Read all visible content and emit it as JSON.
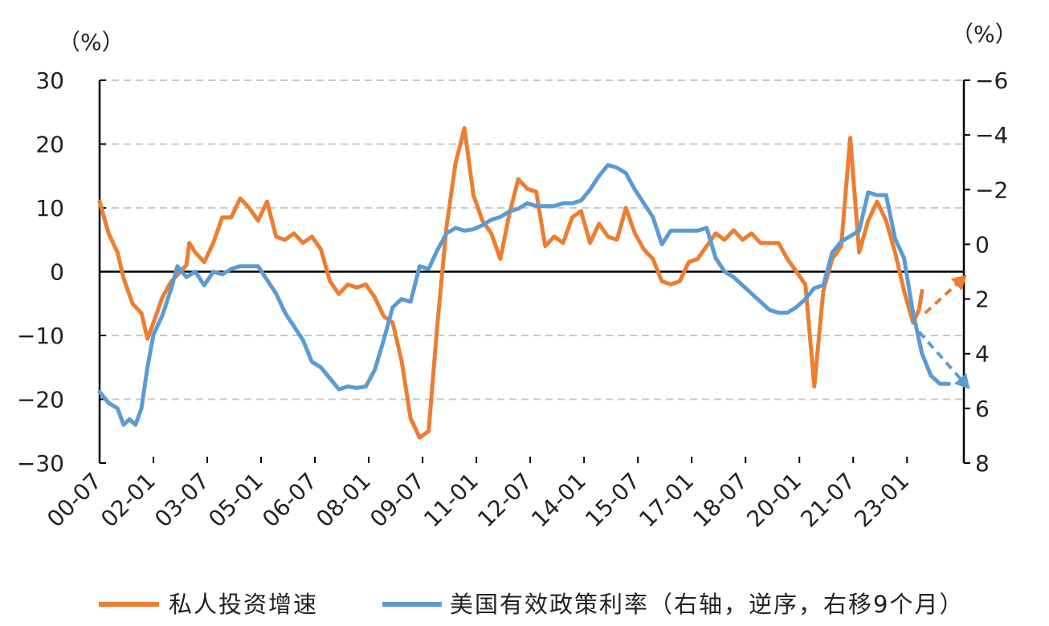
{
  "chart_data": {
    "type": "line",
    "units_left": "（%）",
    "units_right": "（%）",
    "x_tick_labels": [
      "00-07",
      "02-01",
      "03-07",
      "05-01",
      "06-07",
      "08-01",
      "09-07",
      "11-01",
      "12-07",
      "14-01",
      "15-07",
      "17-01",
      "18-07",
      "20-01",
      "21-07",
      "23-01"
    ],
    "x_range": [
      "2000-07",
      "2024-08"
    ],
    "y_left": {
      "ticks": [
        30,
        20,
        10,
        0,
        -10,
        -20,
        -30
      ],
      "range": [
        -30,
        30
      ]
    },
    "y_right": {
      "ticks": [
        -6,
        -4,
        -2,
        0,
        2,
        4,
        6,
        8
      ],
      "range": [
        -6,
        8
      ],
      "reversed": true
    },
    "grid": "dashed horizontal",
    "legend_position": "bottom",
    "series": [
      {
        "name": "私人投资增速",
        "axis": "left",
        "color": "#ED7D31",
        "points": [
          [
            "2000-07",
            11
          ],
          [
            "2000-10",
            6
          ],
          [
            "2001-01",
            3
          ],
          [
            "2001-03",
            -1
          ],
          [
            "2001-06",
            -5
          ],
          [
            "2001-09",
            -6.5
          ],
          [
            "2001-11",
            -10.5
          ],
          [
            "2002-01",
            -8
          ],
          [
            "2002-04",
            -4
          ],
          [
            "2002-07",
            -1.5
          ],
          [
            "2002-10",
            0
          ],
          [
            "2002-12",
            1
          ],
          [
            "2003-01",
            4.5
          ],
          [
            "2003-03",
            3
          ],
          [
            "2003-06",
            1.5
          ],
          [
            "2003-09",
            4.5
          ],
          [
            "2003-12",
            8.5
          ],
          [
            "2004-03",
            8.5
          ],
          [
            "2004-06",
            11.5
          ],
          [
            "2004-09",
            10
          ],
          [
            "2004-12",
            8
          ],
          [
            "2005-03",
            11
          ],
          [
            "2005-06",
            5.5
          ],
          [
            "2005-09",
            5
          ],
          [
            "2005-12",
            6
          ],
          [
            "2006-03",
            4.5
          ],
          [
            "2006-06",
            5.5
          ],
          [
            "2006-09",
            3.5
          ],
          [
            "2006-12",
            -1.5
          ],
          [
            "2007-03",
            -3.5
          ],
          [
            "2007-06",
            -2
          ],
          [
            "2007-09",
            -2.5
          ],
          [
            "2007-12",
            -2
          ],
          [
            "2008-03",
            -4
          ],
          [
            "2008-06",
            -7
          ],
          [
            "2008-09",
            -8
          ],
          [
            "2008-12",
            -14
          ],
          [
            "2009-03",
            -23
          ],
          [
            "2009-06",
            -26
          ],
          [
            "2009-09",
            -25
          ],
          [
            "2009-12",
            -8
          ],
          [
            "2010-03",
            7
          ],
          [
            "2010-06",
            17
          ],
          [
            "2010-09",
            22.5
          ],
          [
            "2010-12",
            12
          ],
          [
            "2011-03",
            8
          ],
          [
            "2011-06",
            6
          ],
          [
            "2011-09",
            2
          ],
          [
            "2011-12",
            9
          ],
          [
            "2012-03",
            14.5
          ],
          [
            "2012-06",
            13
          ],
          [
            "2012-09",
            12.5
          ],
          [
            "2012-12",
            4
          ],
          [
            "2013-03",
            5.5
          ],
          [
            "2013-06",
            4.5
          ],
          [
            "2013-09",
            8.5
          ],
          [
            "2013-12",
            9.5
          ],
          [
            "2014-03",
            4.5
          ],
          [
            "2014-06",
            7.5
          ],
          [
            "2014-09",
            5.5
          ],
          [
            "2014-12",
            5
          ],
          [
            "2015-03",
            10
          ],
          [
            "2015-06",
            6
          ],
          [
            "2015-09",
            3.5
          ],
          [
            "2015-12",
            2
          ],
          [
            "2016-03",
            -1.5
          ],
          [
            "2016-06",
            -2
          ],
          [
            "2016-09",
            -1.5
          ],
          [
            "2016-12",
            1.5
          ],
          [
            "2017-03",
            2
          ],
          [
            "2017-06",
            4
          ],
          [
            "2017-09",
            6
          ],
          [
            "2017-12",
            5
          ],
          [
            "2018-03",
            6.5
          ],
          [
            "2018-06",
            5
          ],
          [
            "2018-09",
            6
          ],
          [
            "2018-12",
            4.5
          ],
          [
            "2019-03",
            4.5
          ],
          [
            "2019-06",
            4.5
          ],
          [
            "2019-09",
            2
          ],
          [
            "2019-12",
            0
          ],
          [
            "2020-03",
            -2
          ],
          [
            "2020-06",
            -18
          ],
          [
            "2020-09",
            -3
          ],
          [
            "2020-12",
            2
          ],
          [
            "2021-03",
            4
          ],
          [
            "2021-06",
            21
          ],
          [
            "2021-09",
            3
          ],
          [
            "2021-12",
            8
          ],
          [
            "2022-03",
            11
          ],
          [
            "2022-06",
            8
          ],
          [
            "2022-09",
            3
          ],
          [
            "2022-12",
            -3
          ],
          [
            "2023-03",
            -8
          ],
          [
            "2023-05",
            -6
          ],
          [
            "2023-06",
            -3
          ]
        ]
      },
      {
        "name": "美国有效政策利率（右轴，逆序，右移9个月）",
        "axis": "right",
        "color": "#5B9BD5",
        "points": [
          [
            "2000-07",
            5.4
          ],
          [
            "2000-10",
            5.8
          ],
          [
            "2001-01",
            6
          ],
          [
            "2001-03",
            6.6
          ],
          [
            "2001-05",
            6.4
          ],
          [
            "2001-07",
            6.6
          ],
          [
            "2001-09",
            6
          ],
          [
            "2001-11",
            4.5
          ],
          [
            "2002-01",
            3.3
          ],
          [
            "2002-04",
            2.6
          ],
          [
            "2002-07",
            1.6
          ],
          [
            "2002-09",
            0.8
          ],
          [
            "2002-12",
            1.2
          ],
          [
            "2003-03",
            1
          ],
          [
            "2003-06",
            1.5
          ],
          [
            "2003-09",
            1
          ],
          [
            "2003-12",
            1.1
          ],
          [
            "2004-03",
            0.9
          ],
          [
            "2004-06",
            0.8
          ],
          [
            "2004-09",
            0.8
          ],
          [
            "2004-12",
            0.8
          ],
          [
            "2005-03",
            1.3
          ],
          [
            "2005-06",
            1.8
          ],
          [
            "2005-09",
            2.5
          ],
          [
            "2005-12",
            3
          ],
          [
            "2006-03",
            3.5
          ],
          [
            "2006-06",
            4.3
          ],
          [
            "2006-09",
            4.5
          ],
          [
            "2006-12",
            4.9
          ],
          [
            "2007-03",
            5.3
          ],
          [
            "2007-06",
            5.2
          ],
          [
            "2007-09",
            5.25
          ],
          [
            "2007-12",
            5.2
          ],
          [
            "2008-03",
            4.6
          ],
          [
            "2008-06",
            3.5
          ],
          [
            "2008-09",
            2.3
          ],
          [
            "2008-12",
            2
          ],
          [
            "2009-03",
            2.1
          ],
          [
            "2009-06",
            0.8
          ],
          [
            "2009-09",
            0.9
          ],
          [
            "2009-12",
            0.2
          ],
          [
            "2010-03",
            -0.4
          ],
          [
            "2010-06",
            -0.6
          ],
          [
            "2010-09",
            -0.5
          ],
          [
            "2010-12",
            -0.55
          ],
          [
            "2011-03",
            -0.7
          ],
          [
            "2011-06",
            -0.9
          ],
          [
            "2011-09",
            -1
          ],
          [
            "2011-12",
            -1.2
          ],
          [
            "2012-03",
            -1.3
          ],
          [
            "2012-06",
            -1.5
          ],
          [
            "2012-09",
            -1.4
          ],
          [
            "2012-12",
            -1.4
          ],
          [
            "2013-03",
            -1.4
          ],
          [
            "2013-06",
            -1.5
          ],
          [
            "2013-09",
            -1.5
          ],
          [
            "2013-12",
            -1.6
          ],
          [
            "2014-03",
            -2
          ],
          [
            "2014-06",
            -2.5
          ],
          [
            "2014-09",
            -2.9
          ],
          [
            "2014-12",
            -2.8
          ],
          [
            "2015-03",
            -2.6
          ],
          [
            "2015-06",
            -2
          ],
          [
            "2015-09",
            -1.5
          ],
          [
            "2015-12",
            -1
          ],
          [
            "2016-03",
            0
          ],
          [
            "2016-06",
            -0.5
          ],
          [
            "2016-09",
            -0.5
          ],
          [
            "2016-12",
            -0.5
          ],
          [
            "2017-03",
            -0.5
          ],
          [
            "2017-06",
            -0.6
          ],
          [
            "2017-09",
            0.5
          ],
          [
            "2017-12",
            1
          ],
          [
            "2018-03",
            1.2
          ],
          [
            "2018-06",
            1.5
          ],
          [
            "2018-09",
            1.8
          ],
          [
            "2018-12",
            2.1
          ],
          [
            "2019-03",
            2.4
          ],
          [
            "2019-06",
            2.5
          ],
          [
            "2019-09",
            2.5
          ],
          [
            "2019-12",
            2.3
          ],
          [
            "2020-03",
            2
          ],
          [
            "2020-06",
            1.6
          ],
          [
            "2020-09",
            1.5
          ],
          [
            "2020-12",
            0.3
          ],
          [
            "2021-03",
            -0.1
          ],
          [
            "2021-06",
            -0.3
          ],
          [
            "2021-09",
            -0.5
          ],
          [
            "2021-12",
            -1.9
          ],
          [
            "2022-03",
            -1.8
          ],
          [
            "2022-06",
            -1.8
          ],
          [
            "2022-09",
            -0.2
          ],
          [
            "2022-12",
            0.5
          ],
          [
            "2023-03",
            2.5
          ],
          [
            "2023-06",
            4
          ],
          [
            "2023-09",
            4.8
          ],
          [
            "2023-12",
            5.1
          ],
          [
            "2024-03",
            5.1
          ]
        ]
      }
    ],
    "annotations": [
      {
        "type": "dashed-arrow",
        "axis": "left",
        "color": "#ED7D31",
        "from": [
          "2023-07",
          -6.5
        ],
        "to": [
          "2024-09",
          -0.5
        ]
      },
      {
        "type": "dashed-arrow",
        "axis": "right",
        "color": "#5B9BD5",
        "from": [
          "2023-05",
          3.2
        ],
        "to": [
          "2024-10",
          5.3
        ]
      }
    ]
  },
  "legend": [
    {
      "label": "私人投资增速",
      "color": "#ED7D31"
    },
    {
      "label": "美国有效政策利率（右轴，逆序，右移9个月）",
      "color": "#5B9BD5"
    }
  ]
}
